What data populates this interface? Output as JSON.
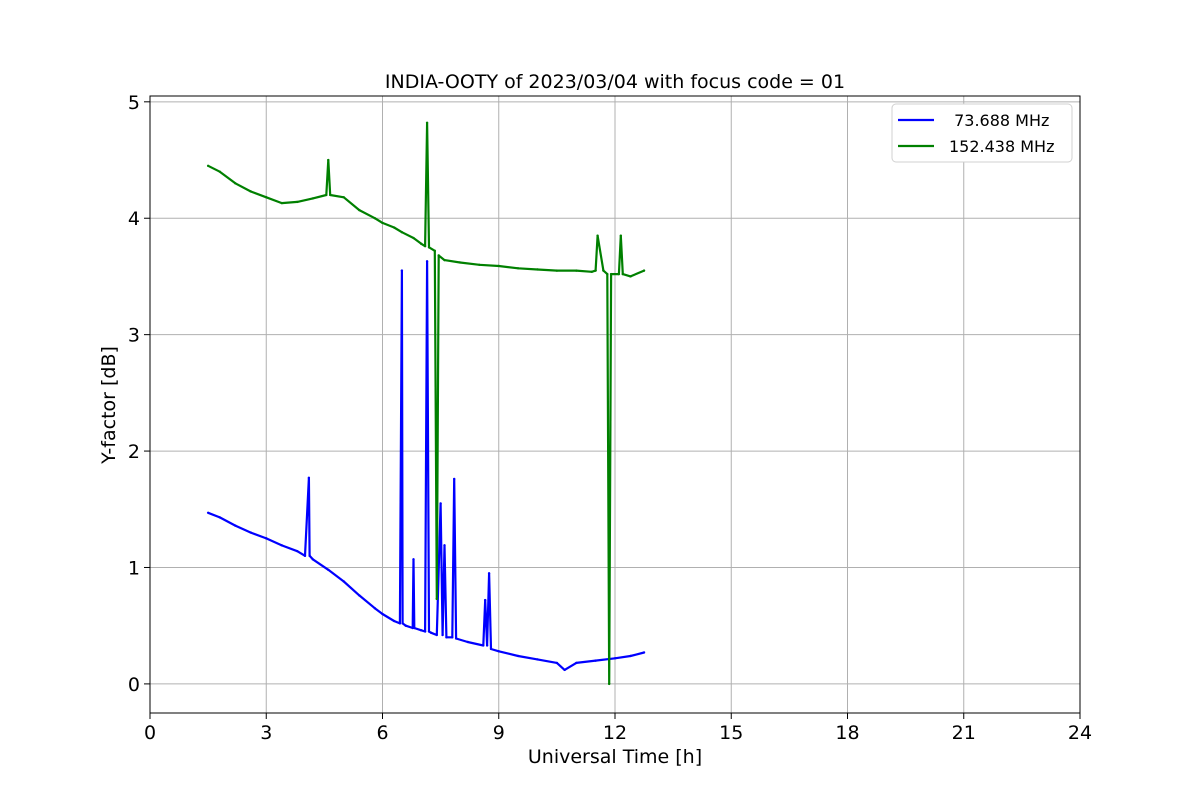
{
  "chart_data": {
    "type": "line",
    "title": "INDIA-OOTY of 2023/03/04 with focus code = 01",
    "xlabel": "Universal Time [h]",
    "ylabel": "Y-factor [dB]",
    "xlim": [
      0,
      24
    ],
    "ylim": [
      -0.25,
      5.05
    ],
    "xticks": [
      0,
      3,
      6,
      9,
      12,
      15,
      18,
      21,
      24
    ],
    "yticks": [
      0,
      1,
      2,
      3,
      4,
      5
    ],
    "grid": true,
    "legend_position": "top-right",
    "series": [
      {
        "name": " 73.688 MHz",
        "color": "#0000ff",
        "x": [
          1.5,
          1.8,
          2.2,
          2.6,
          3.0,
          3.4,
          3.8,
          4.0,
          4.1,
          4.12,
          4.2,
          4.6,
          5.0,
          5.4,
          5.8,
          6.0,
          6.3,
          6.45,
          6.5,
          6.52,
          6.6,
          6.78,
          6.8,
          6.82,
          7.0,
          7.1,
          7.15,
          7.2,
          7.25,
          7.4,
          7.5,
          7.55,
          7.6,
          7.65,
          7.8,
          7.85,
          7.9,
          8.2,
          8.6,
          8.65,
          8.7,
          8.75,
          8.8,
          9.0,
          9.5,
          10.0,
          10.5,
          10.7,
          11.0,
          11.5,
          12.0,
          12.4,
          12.75
        ],
        "y": [
          1.47,
          1.43,
          1.36,
          1.3,
          1.25,
          1.19,
          1.14,
          1.1,
          1.77,
          1.1,
          1.07,
          0.98,
          0.88,
          0.76,
          0.65,
          0.6,
          0.54,
          0.52,
          3.55,
          0.52,
          0.5,
          0.48,
          1.07,
          0.48,
          0.46,
          0.45,
          3.63,
          0.45,
          0.44,
          0.42,
          1.55,
          0.42,
          1.19,
          0.4,
          0.4,
          1.76,
          0.39,
          0.36,
          0.33,
          0.72,
          0.33,
          0.95,
          0.3,
          0.28,
          0.24,
          0.21,
          0.18,
          0.12,
          0.18,
          0.2,
          0.22,
          0.24,
          0.27
        ]
      },
      {
        "name": "152.438 MHz",
        "color": "#008000",
        "x": [
          1.5,
          1.8,
          2.2,
          2.6,
          3.0,
          3.4,
          3.8,
          4.2,
          4.55,
          4.6,
          4.65,
          5.0,
          5.4,
          5.8,
          6.0,
          6.3,
          6.5,
          6.8,
          7.0,
          7.1,
          7.15,
          7.2,
          7.35,
          7.4,
          7.45,
          7.6,
          8.0,
          8.5,
          9.0,
          9.5,
          10.0,
          10.5,
          11.0,
          11.4,
          11.5,
          11.55,
          11.7,
          11.8,
          11.85,
          11.9,
          12.1,
          12.15,
          12.2,
          12.4,
          12.75
        ],
        "y": [
          4.45,
          4.4,
          4.3,
          4.23,
          4.18,
          4.13,
          4.14,
          4.17,
          4.2,
          4.5,
          4.2,
          4.18,
          4.07,
          4.0,
          3.96,
          3.92,
          3.88,
          3.83,
          3.78,
          3.76,
          4.82,
          3.75,
          3.72,
          0.73,
          3.68,
          3.64,
          3.62,
          3.6,
          3.59,
          3.57,
          3.56,
          3.55,
          3.55,
          3.54,
          3.55,
          3.85,
          3.55,
          3.52,
          0.0,
          3.52,
          3.52,
          3.85,
          3.52,
          3.5,
          3.55
        ]
      }
    ]
  }
}
